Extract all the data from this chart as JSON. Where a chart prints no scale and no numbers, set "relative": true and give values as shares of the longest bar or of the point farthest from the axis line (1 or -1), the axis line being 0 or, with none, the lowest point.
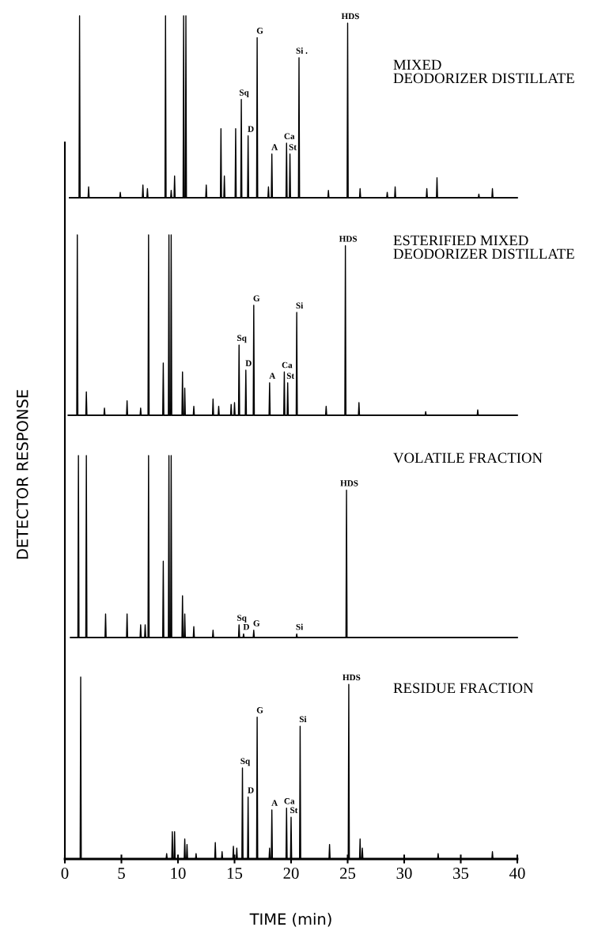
{
  "chart_data": [
    {
      "type": "line",
      "title": "MIXED\nDEODORIZER DISTILLATE",
      "relative": true,
      "xlim": [
        0,
        40
      ],
      "tick_labels": false,
      "color": "#000000",
      "x": [
        0.4,
        1.25,
        1.3,
        1.35,
        2.05,
        2.1,
        2.15,
        4.85,
        4.9,
        4.95,
        6.85,
        6.9,
        6.95,
        7.25,
        7.3,
        7.35,
        8.85,
        8.9,
        8.95,
        9.35,
        9.4,
        9.45,
        9.65,
        9.7,
        9.75,
        10.45,
        10.5,
        10.55,
        10.65,
        10.7,
        10.75,
        12.45,
        12.5,
        12.55,
        13.75,
        13.8,
        13.85,
        14.05,
        14.1,
        14.15,
        15.05,
        15.1,
        15.15,
        15.55,
        15.6,
        15.65,
        16.15,
        16.2,
        16.25,
        16.95,
        17.0,
        17.05,
        17.95,
        18.0,
        18.05,
        18.25,
        18.3,
        18.35,
        19.55,
        19.6,
        19.65,
        19.85,
        19.9,
        19.95,
        20.65,
        20.7,
        20.75,
        23.25,
        23.3,
        23.35,
        24.95,
        25.0,
        25.05,
        26.05,
        26.1,
        26.15,
        28.45,
        28.5,
        28.55,
        29.15,
        29.2,
        29.25,
        31.95,
        32.0,
        32.05,
        32.85,
        32.9,
        32.95,
        36.55,
        36.6,
        36.65,
        37.75,
        37.8,
        37.85,
        40
      ],
      "values": [
        0,
        0,
        1,
        0,
        0,
        0.06,
        0,
        0,
        0.03,
        0,
        0,
        0.07,
        0,
        0,
        0.05,
        0,
        0,
        1,
        0,
        0,
        0.04,
        0,
        0,
        0.12,
        0,
        0,
        1,
        0,
        0,
        1,
        0,
        0,
        0.07,
        0,
        0,
        0.38,
        0,
        0,
        0.12,
        0,
        0,
        0.38,
        0,
        0,
        0.54,
        0,
        0,
        0.34,
        0,
        0,
        0.88,
        0,
        0,
        0.06,
        0,
        0,
        0.24,
        0,
        0,
        0.3,
        0,
        0,
        0.24,
        0,
        0,
        0.77,
        0,
        0,
        0.04,
        0,
        0,
        0.96,
        0,
        0,
        0.05,
        0,
        0,
        0.03,
        0,
        0,
        0.06,
        0,
        0,
        0.05,
        0,
        0,
        0.11,
        0,
        0,
        0.02,
        0,
        0,
        0.05,
        0,
        0
      ],
      "annotations": [
        {
          "text": "Sq",
          "x": 15.6,
          "y": 0.54
        },
        {
          "text": "D",
          "x": 16.2,
          "y": 0.34
        },
        {
          "text": "G",
          "x": 17.0,
          "y": 0.88
        },
        {
          "text": "A",
          "x": 18.3,
          "y": 0.24
        },
        {
          "text": "Ca",
          "x": 19.6,
          "y": 0.3
        },
        {
          "text": "St",
          "x": 19.9,
          "y": 0.24
        },
        {
          "text": "Si .",
          "x": 20.7,
          "y": 0.77
        },
        {
          "text": "HDS",
          "x": 25.0,
          "y": 0.96
        }
      ]
    },
    {
      "type": "line",
      "title": "ESTERIFIED MIXED\nDEODORIZER DISTILLATE",
      "relative": true,
      "xlim": [
        0,
        40
      ],
      "tick_labels": false,
      "color": "#000000",
      "x": [
        0.3,
        1.05,
        1.1,
        1.15,
        1.85,
        1.9,
        1.95,
        3.45,
        3.5,
        3.55,
        5.45,
        5.5,
        5.55,
        6.65,
        6.7,
        6.75,
        7.35,
        7.4,
        7.45,
        8.65,
        8.7,
        8.75,
        9.15,
        9.2,
        9.25,
        9.35,
        9.4,
        9.45,
        10.35,
        10.4,
        10.45,
        10.55,
        10.6,
        10.65,
        11.35,
        11.4,
        11.45,
        13.05,
        13.1,
        13.15,
        13.55,
        13.6,
        13.65,
        14.65,
        14.7,
        14.75,
        14.95,
        15.0,
        15.05,
        15.35,
        15.4,
        15.45,
        15.95,
        16.0,
        16.05,
        16.65,
        16.7,
        16.75,
        18.05,
        18.1,
        18.15,
        19.35,
        19.4,
        19.45,
        19.65,
        19.7,
        19.75,
        20.45,
        20.5,
        20.55,
        23.05,
        23.1,
        23.15,
        24.75,
        24.8,
        24.85,
        25.95,
        26.0,
        26.05,
        31.85,
        31.9,
        31.95,
        36.45,
        36.5,
        36.55,
        40
      ],
      "values": [
        0,
        0,
        1,
        0,
        0,
        0.13,
        0,
        0,
        0.04,
        0,
        0,
        0.08,
        0,
        0,
        0.04,
        0,
        0,
        1,
        0,
        0,
        0.29,
        0,
        0,
        1,
        0,
        0,
        1,
        0,
        0,
        0.24,
        0,
        0,
        0.15,
        0,
        0,
        0.05,
        0,
        0,
        0.09,
        0,
        0,
        0.05,
        0,
        0,
        0.06,
        0,
        0,
        0.07,
        0,
        0,
        0.39,
        0,
        0,
        0.25,
        0,
        0,
        0.61,
        0,
        0,
        0.18,
        0,
        0,
        0.24,
        0,
        0,
        0.18,
        0,
        0,
        0.57,
        0,
        0,
        0.05,
        0,
        0,
        0.94,
        0,
        0,
        0.07,
        0,
        0,
        0.02,
        0,
        0,
        0.03,
        0,
        0
      ],
      "annotations": [
        {
          "text": "Sq",
          "x": 15.4,
          "y": 0.39
        },
        {
          "text": "D",
          "x": 16.0,
          "y": 0.25
        },
        {
          "text": "G",
          "x": 16.7,
          "y": 0.61
        },
        {
          "text": "A",
          "x": 18.1,
          "y": 0.18
        },
        {
          "text": "Ca",
          "x": 19.4,
          "y": 0.24
        },
        {
          "text": "St",
          "x": 19.7,
          "y": 0.18
        },
        {
          "text": "Si",
          "x": 20.5,
          "y": 0.57
        },
        {
          "text": "HDS",
          "x": 24.8,
          "y": 0.94
        }
      ]
    },
    {
      "type": "line",
      "title": "VOLATILE FRACTION",
      "relative": true,
      "xlim": [
        0,
        40
      ],
      "tick_labels": false,
      "color": "#000000",
      "x": [
        0.5,
        1.15,
        1.2,
        1.25,
        1.85,
        1.9,
        1.95,
        3.55,
        3.6,
        3.65,
        5.45,
        5.5,
        5.55,
        6.65,
        6.7,
        6.75,
        7.05,
        7.1,
        7.15,
        7.35,
        7.4,
        7.45,
        8.65,
        8.7,
        8.75,
        9.15,
        9.2,
        9.25,
        9.35,
        9.4,
        9.45,
        10.35,
        10.4,
        10.45,
        10.55,
        10.6,
        10.65,
        11.35,
        11.4,
        11.45,
        13.05,
        13.1,
        13.15,
        15.35,
        15.4,
        15.45,
        15.75,
        15.8,
        15.85,
        16.65,
        16.7,
        16.75,
        20.45,
        20.5,
        20.55,
        24.85,
        24.9,
        24.95,
        40
      ],
      "values": [
        0,
        0,
        1,
        0,
        0,
        1,
        0,
        0,
        0.13,
        0,
        0,
        0.13,
        0,
        0,
        0.07,
        0,
        0,
        0.07,
        0,
        0,
        1,
        0,
        0,
        0.42,
        0,
        0,
        1,
        0,
        0,
        1,
        0,
        0,
        0.23,
        0,
        0,
        0.13,
        0,
        0,
        0.06,
        0,
        0,
        0.04,
        0,
        0,
        0.07,
        0,
        0,
        0.02,
        0,
        0,
        0.04,
        0,
        0,
        0.02,
        0,
        0,
        0.81,
        0,
        0
      ],
      "annotations": [
        {
          "text": "Sq",
          "x": 15.4,
          "y": 0.07
        },
        {
          "text": "D",
          "x": 15.8,
          "y": 0.02
        },
        {
          "text": "G",
          "x": 16.7,
          "y": 0.04
        },
        {
          "text": "Si",
          "x": 20.5,
          "y": 0.02
        },
        {
          "text": "HDS",
          "x": 24.9,
          "y": 0.81
        }
      ]
    },
    {
      "type": "line",
      "title": "RESIDUE FRACTION",
      "relative": true,
      "xlim": [
        0,
        40
      ],
      "xticks": [
        0,
        5,
        10,
        15,
        20,
        25,
        30,
        35,
        40
      ],
      "tick_labels": "x",
      "xlabel": "TIME (min)",
      "ylabel": "DETECTOR RESPONSE",
      "color": "#000000",
      "x": [
        0.3,
        1.35,
        1.4,
        1.45,
        8.95,
        9.0,
        9.05,
        9.45,
        9.5,
        9.55,
        9.65,
        9.7,
        9.75,
        10.55,
        10.6,
        10.65,
        10.75,
        10.8,
        10.85,
        11.55,
        11.6,
        11.65,
        13.25,
        13.3,
        13.35,
        13.85,
        13.9,
        13.95,
        14.85,
        14.9,
        14.95,
        15.15,
        15.2,
        15.25,
        15.65,
        15.7,
        15.75,
        16.15,
        16.2,
        16.25,
        16.95,
        17.0,
        17.05,
        18.05,
        18.1,
        18.15,
        18.25,
        18.3,
        18.35,
        19.55,
        19.6,
        19.65,
        19.95,
        20.0,
        20.05,
        20.75,
        20.8,
        20.85,
        23.35,
        23.4,
        23.45,
        25.05,
        25.1,
        25.15,
        26.05,
        26.1,
        26.15,
        26.25,
        26.3,
        26.35,
        32.95,
        33.0,
        33.05,
        37.75,
        37.8,
        37.85,
        40
      ],
      "values": [
        0,
        0,
        1,
        0,
        0,
        0.03,
        0,
        0,
        0.15,
        0,
        0,
        0.15,
        0,
        0,
        0.11,
        0,
        0,
        0.08,
        0,
        0,
        0.03,
        0,
        0,
        0.09,
        0,
        0,
        0.04,
        0,
        0,
        0.07,
        0,
        0,
        0.06,
        0,
        0,
        0.5,
        0,
        0,
        0.34,
        0,
        0,
        0.78,
        0,
        0,
        0.06,
        0,
        0,
        0.27,
        0,
        0,
        0.28,
        0,
        0,
        0.23,
        0,
        0,
        0.73,
        0,
        0,
        0.08,
        0,
        0,
        0.96,
        0,
        0,
        0.11,
        0,
        0,
        0.06,
        0,
        0,
        0.03,
        0,
        0,
        0.04,
        0,
        0
      ],
      "annotations": [
        {
          "text": "Sq",
          "x": 15.7,
          "y": 0.5
        },
        {
          "text": "D",
          "x": 16.2,
          "y": 0.34
        },
        {
          "text": "G",
          "x": 17.0,
          "y": 0.78
        },
        {
          "text": "A",
          "x": 18.3,
          "y": 0.27
        },
        {
          "text": "Ca",
          "x": 19.6,
          "y": 0.28
        },
        {
          "text": "St",
          "x": 20.0,
          "y": 0.23
        },
        {
          "text": "Si",
          "x": 20.8,
          "y": 0.73
        },
        {
          "text": "HDS",
          "x": 25.1,
          "y": 0.96
        }
      ]
    }
  ]
}
